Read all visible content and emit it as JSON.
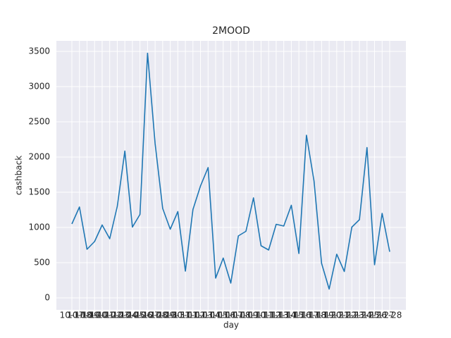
{
  "chart_data": {
    "type": "line",
    "title": "2MOOD",
    "x_label": "day",
    "y_label": "cashback",
    "categories": [
      "10-17",
      "10-18",
      "10-19",
      "10-20",
      "10-21",
      "10-22",
      "10-23",
      "10-24",
      "10-25",
      "10-26",
      "10-27",
      "10-28",
      "10-29",
      "10-30",
      "10-31",
      "11-01",
      "11-02",
      "11-03",
      "11-04",
      "11-05",
      "11-06",
      "11-07",
      "11-08",
      "11-09",
      "11-10",
      "11-11",
      "11-12",
      "11-13",
      "11-14",
      "11-15",
      "11-16",
      "11-17",
      "11-18",
      "11-19",
      "11-20",
      "11-21",
      "11-22",
      "11-23",
      "11-24",
      "11-25",
      "11-26",
      "11-27",
      "11-28"
    ],
    "series": [
      {
        "name": "cashback",
        "color": "#1f77b4",
        "values": [
          1050,
          1290,
          690,
          800,
          1035,
          840,
          1300,
          2085,
          1005,
          1185,
          3475,
          2190,
          1270,
          975,
          1225,
          380,
          1255,
          1590,
          1850,
          280,
          565,
          210,
          880,
          945,
          1420,
          740,
          680,
          1045,
          1020,
          1315,
          630,
          2310,
          1660,
          490,
          125,
          620,
          375,
          1005,
          1110,
          2135,
          470,
          1200,
          655
        ]
      }
    ],
    "ylim": [
      -170,
      3650
    ],
    "yticks": [
      0,
      500,
      1000,
      1500,
      2000,
      2500,
      3000,
      3500
    ],
    "grid": true
  }
}
